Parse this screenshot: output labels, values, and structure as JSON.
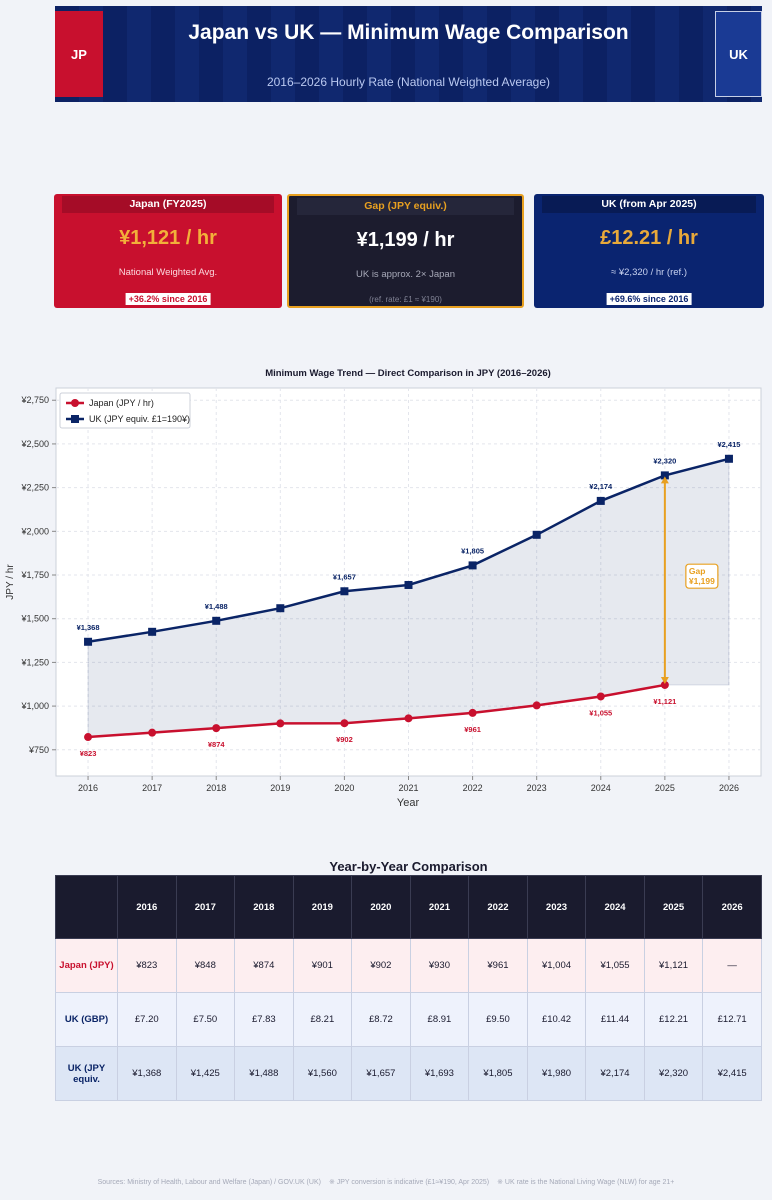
{
  "header": {
    "title": "Japan vs UK — Minimum Wage Comparison",
    "subtitle": "2016–2026  Hourly Rate (National Weighted Average)",
    "left_flag": "JP",
    "right_flag": "UK"
  },
  "cards": [
    {
      "label": "Japan (FY2025)",
      "value": "¥1,121 / hr",
      "note": "National Weighted Avg.",
      "badge": "+36.2% since 2016"
    },
    {
      "label": "Gap (JPY equiv.)",
      "value": "¥1,199 / hr",
      "note": "UK is approx. 2× Japan",
      "badge": "(ref. rate: £1 ≈ ¥190)"
    },
    {
      "label": "UK (from Apr 2025)",
      "value": "£12.21 / hr",
      "note": "≈ ¥2,320 / hr (ref.)",
      "badge": "+69.6% since 2016"
    }
  ],
  "chart_data": {
    "type": "line",
    "title": "Minimum Wage Trend — Direct Comparison in JPY (2016–2026)",
    "x_label": "Year",
    "y_label": "JPY / hr",
    "x": [
      2016,
      2017,
      2018,
      2019,
      2020,
      2021,
      2022,
      2023,
      2024,
      2025,
      2026
    ],
    "xlim": [
      2015.5,
      2026.5
    ],
    "xticks": [
      2016,
      2017,
      2018,
      2019,
      2020,
      2021,
      2022,
      2023,
      2024,
      2025,
      2026
    ],
    "ylim": [
      600,
      2820
    ],
    "yticks": [
      {
        "value": 750,
        "label": "¥750"
      },
      {
        "value": 1000,
        "label": "¥1,000"
      },
      {
        "value": 1250,
        "label": "¥1,250"
      },
      {
        "value": 1500,
        "label": "¥1,500"
      },
      {
        "value": 1750,
        "label": "¥1,750"
      },
      {
        "value": 2000,
        "label": "¥2,000"
      },
      {
        "value": 2250,
        "label": "¥2,250"
      },
      {
        "value": 2500,
        "label": "¥2,500"
      },
      {
        "value": 2750,
        "label": "¥2,750"
      }
    ],
    "grid": true,
    "legend": "upper left",
    "series": [
      {
        "name": "Japan (JPY / hr)",
        "color": "#c8102e",
        "marker": "circle",
        "values": [
          823,
          848,
          874,
          901,
          902,
          930,
          961,
          1004,
          1055,
          1121,
          null
        ],
        "value_labels": [
          "¥823",
          null,
          "¥874",
          null,
          "¥902",
          null,
          "¥961",
          null,
          "¥1,055",
          "¥1,121",
          null
        ]
      },
      {
        "name": "UK (JPY equiv.  £1=190¥)",
        "color": "#0a2466",
        "marker": "square",
        "values": [
          1368,
          1425,
          1488,
          1560,
          1657,
          1693,
          1805,
          1980,
          2174,
          2320,
          2415
        ],
        "value_labels": [
          "¥1,368",
          null,
          "¥1,488",
          null,
          "¥1,657",
          null,
          "¥1,805",
          null,
          "¥2,174",
          "¥2,320",
          "¥2,415"
        ]
      }
    ],
    "annotation": {
      "title": "Gap",
      "value": "¥1,199",
      "color": "#e8a020"
    }
  },
  "table": {
    "title": "Year-by-Year Comparison",
    "columns": [
      "2016",
      "2017",
      "2018",
      "2019",
      "2020",
      "2021",
      "2022",
      "2023",
      "2024",
      "2025",
      "2026"
    ],
    "rows": [
      {
        "label": "Japan (JPY)",
        "cells": [
          "¥823",
          "¥848",
          "¥874",
          "¥901",
          "¥902",
          "¥930",
          "¥961",
          "¥1,004",
          "¥1,055",
          "¥1,121",
          "—"
        ]
      },
      {
        "label": "UK (GBP)",
        "cells": [
          "£7.20",
          "£7.50",
          "£7.83",
          "£8.21",
          "£8.72",
          "£8.91",
          "£9.50",
          "£10.42",
          "£11.44",
          "£12.21",
          "£12.71"
        ]
      },
      {
        "label": "UK (JPY equiv.",
        "cells": [
          "¥1,368",
          "¥1,425",
          "¥1,488",
          "¥1,560",
          "¥1,657",
          "¥1,693",
          "¥1,805",
          "¥1,980",
          "¥2,174",
          "¥2,320",
          "¥2,415"
        ]
      }
    ]
  },
  "footer": [
    "Sources: Ministry of Health, Labour and Welfare (Japan) / GOV.UK (UK)",
    "※ JPY conversion is indicative (£1≈¥190, Apr 2025)",
    "※ UK rate is the National Living Wage (NLW) for age 21+"
  ]
}
